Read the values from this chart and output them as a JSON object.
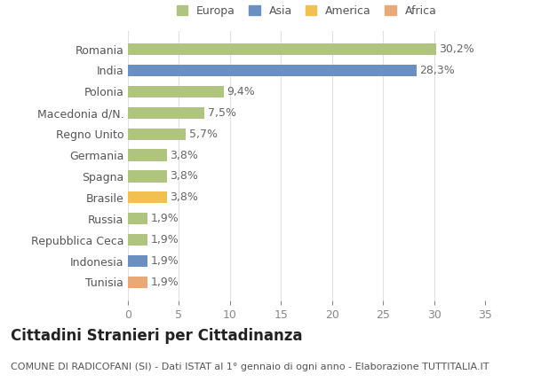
{
  "categories": [
    "Romania",
    "India",
    "Polonia",
    "Macedonia d/N.",
    "Regno Unito",
    "Germania",
    "Spagna",
    "Brasile",
    "Russia",
    "Repubblica Ceca",
    "Indonesia",
    "Tunisia"
  ],
  "values": [
    30.2,
    28.3,
    9.4,
    7.5,
    5.7,
    3.8,
    3.8,
    3.8,
    1.9,
    1.9,
    1.9,
    1.9
  ],
  "labels": [
    "30,2%",
    "28,3%",
    "9,4%",
    "7,5%",
    "5,7%",
    "3,8%",
    "3,8%",
    "3,8%",
    "1,9%",
    "1,9%",
    "1,9%",
    "1,9%"
  ],
  "colors": [
    "#aec47f",
    "#6c8fc2",
    "#aec47f",
    "#aec47f",
    "#aec47f",
    "#aec47f",
    "#aec47f",
    "#f0c050",
    "#aec47f",
    "#aec47f",
    "#6c8fc2",
    "#e8a878"
  ],
  "legend_labels": [
    "Europa",
    "Asia",
    "America",
    "Africa"
  ],
  "legend_colors": [
    "#aec47f",
    "#6c8fc2",
    "#f0c050",
    "#e8a878"
  ],
  "xlim": [
    0,
    35
  ],
  "xticks": [
    0,
    5,
    10,
    15,
    20,
    25,
    30,
    35
  ],
  "title": "Cittadini Stranieri per Cittadinanza",
  "subtitle": "COMUNE DI RADICOFANI (SI) - Dati ISTAT al 1° gennaio di ogni anno - Elaborazione TUTTITALIA.IT",
  "bg_color": "#ffffff",
  "grid_color": "#e0e0e0",
  "bar_height": 0.55,
  "label_fontsize": 9,
  "tick_fontsize": 9,
  "ytick_fontsize": 9,
  "title_fontsize": 12,
  "subtitle_fontsize": 8
}
